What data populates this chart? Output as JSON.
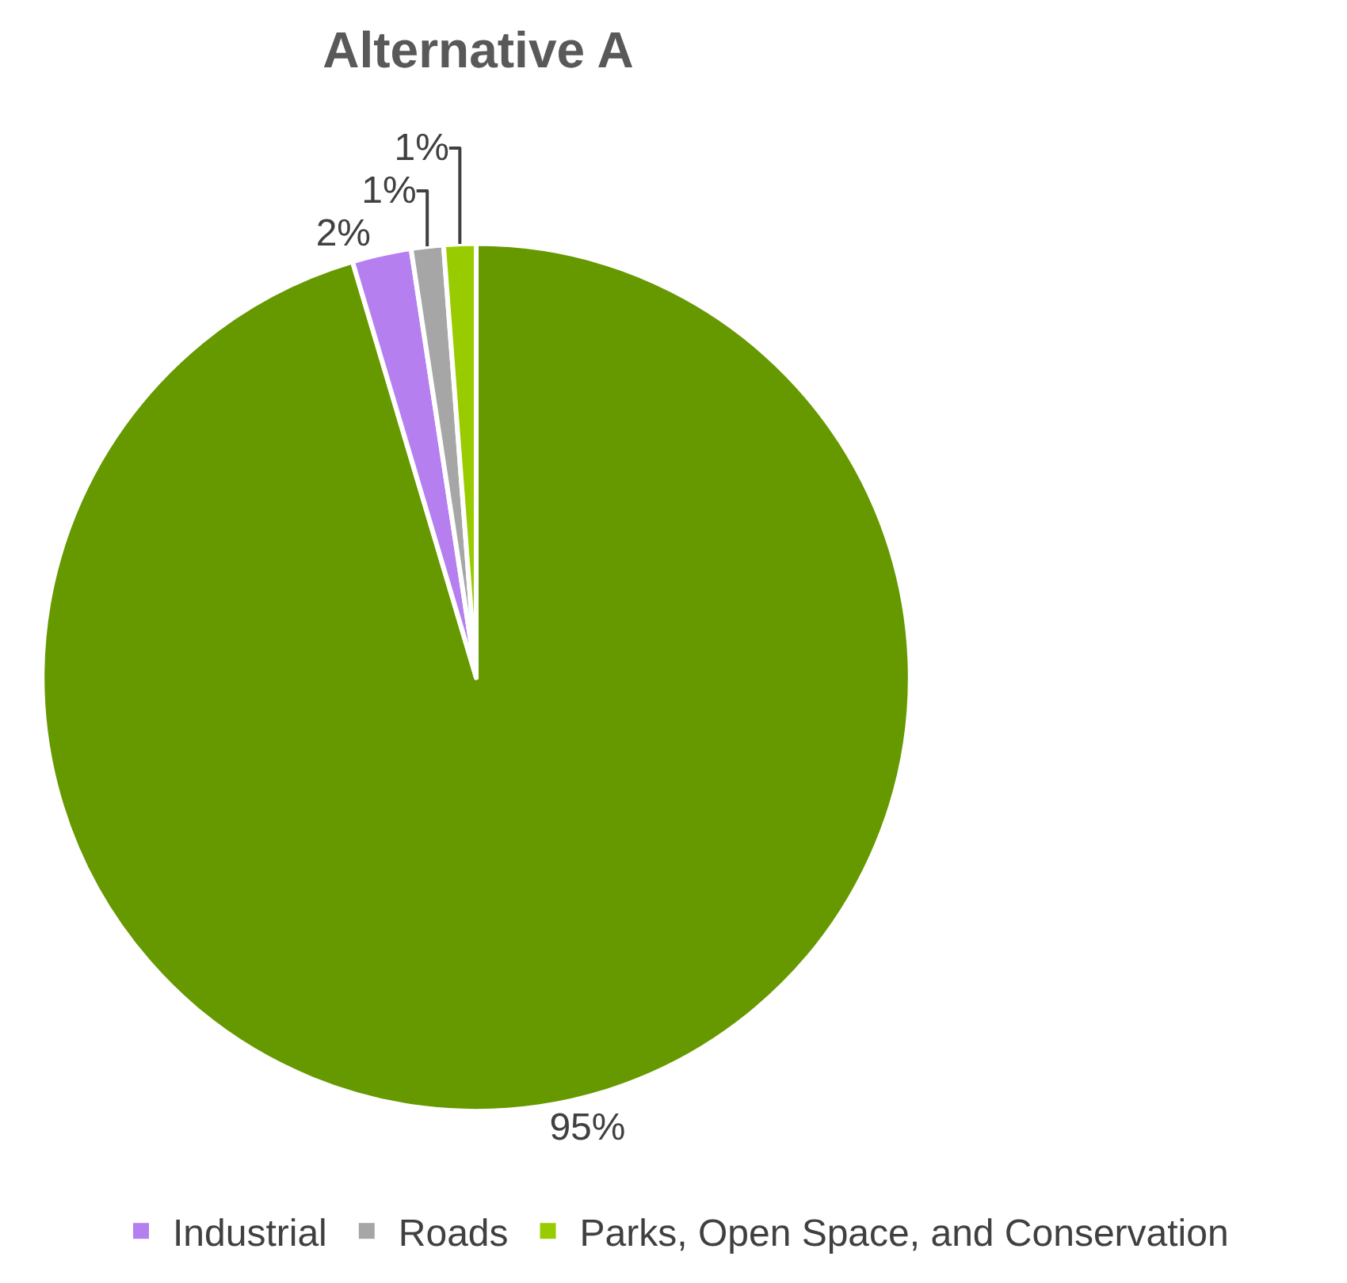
{
  "chart_data": {
    "type": "pie",
    "title": "Alternative A",
    "categories": [
      null,
      "Industrial",
      "Roads",
      "Parks, Open Space, and Conservation"
    ],
    "values": [
      95.4,
      2.2,
      1.2,
      1.2
    ],
    "value_labels": [
      "95%",
      "2%",
      "1%",
      "1%"
    ],
    "colors": [
      "#669900",
      "#b57ff0",
      "#a6a6a6",
      "#99cc00"
    ],
    "legend": "bottom"
  }
}
